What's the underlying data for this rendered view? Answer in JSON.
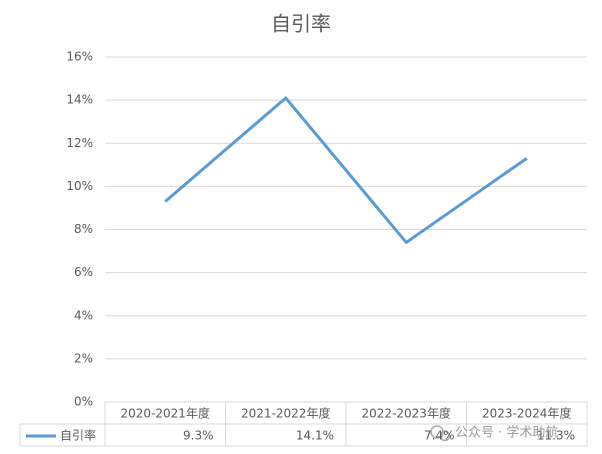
{
  "chart_data": {
    "type": "line",
    "title": "自引率",
    "categories": [
      "2020-2021年度",
      "2021-2022年度",
      "2022-2023年度",
      "2023-2024年度"
    ],
    "series": [
      {
        "name": "自引率",
        "color": "#5b9bd5",
        "values": [
          9.3,
          14.1,
          7.4,
          11.3
        ],
        "value_labels": [
          "9.3%",
          "14.1%",
          "7.4%",
          "11.3%"
        ]
      }
    ],
    "ylim": [
      0,
      16
    ],
    "yticks": [
      {
        "value": 0,
        "label": "0%"
      },
      {
        "value": 2,
        "label": "2%"
      },
      {
        "value": 4,
        "label": "4%"
      },
      {
        "value": 6,
        "label": "6%"
      },
      {
        "value": 8,
        "label": "8%"
      },
      {
        "value": 10,
        "label": "10%"
      },
      {
        "value": 12,
        "label": "12%"
      },
      {
        "value": 14,
        "label": "14%"
      },
      {
        "value": 16,
        "label": "16%"
      }
    ],
    "grid": true,
    "data_table": true,
    "watermark": "公众号 · 学术助航"
  }
}
